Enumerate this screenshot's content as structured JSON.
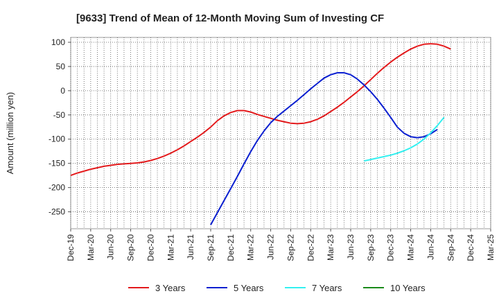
{
  "chart_data": {
    "type": "line",
    "title": "[9633]  Trend of Mean of 12-Month Moving Sum of Investing CF",
    "xlabel": "",
    "ylabel": "Amount (million yen)",
    "ylim": [
      -285,
      110
    ],
    "y_ticks": [
      100,
      50,
      0,
      -50,
      -100,
      -150,
      -200,
      -250
    ],
    "x_ticks": [
      "Dec-19",
      "Mar-20",
      "Jun-20",
      "Sep-20",
      "Dec-20",
      "Mar-21",
      "Jun-21",
      "Sep-21",
      "Dec-21",
      "Mar-22",
      "Jun-22",
      "Sep-22",
      "Dec-22",
      "Mar-23",
      "Jun-23",
      "Sep-23",
      "Dec-23",
      "Mar-24",
      "Jun-24",
      "Sep-24",
      "Dec-24",
      "Mar-25"
    ],
    "grid": true,
    "legend_position": "bottom",
    "series": [
      {
        "name": "3 Years",
        "color": "#e31a1c",
        "points": [
          [
            "Dec-19",
            -175
          ],
          [
            "Jan-20",
            -170
          ],
          [
            "Feb-20",
            -166
          ],
          [
            "Mar-20",
            -162
          ],
          [
            "Apr-20",
            -159
          ],
          [
            "May-20",
            -156
          ],
          [
            "Jun-20",
            -154
          ],
          [
            "Jul-20",
            -152
          ],
          [
            "Aug-20",
            -151
          ],
          [
            "Sep-20",
            -150
          ],
          [
            "Oct-20",
            -149
          ],
          [
            "Nov-20",
            -147
          ],
          [
            "Dec-20",
            -144
          ],
          [
            "Jan-21",
            -140
          ],
          [
            "Feb-21",
            -135
          ],
          [
            "Mar-21",
            -129
          ],
          [
            "Apr-21",
            -122
          ],
          [
            "May-21",
            -114
          ],
          [
            "Jun-21",
            -105
          ],
          [
            "Jul-21",
            -96
          ],
          [
            "Aug-21",
            -86
          ],
          [
            "Sep-21",
            -75
          ],
          [
            "Oct-21",
            -62
          ],
          [
            "Nov-21",
            -52
          ],
          [
            "Dec-21",
            -45
          ],
          [
            "Jan-22",
            -41
          ],
          [
            "Feb-22",
            -41
          ],
          [
            "Mar-22",
            -44
          ],
          [
            "Apr-22",
            -49
          ],
          [
            "May-22",
            -53
          ],
          [
            "Jun-22",
            -57
          ],
          [
            "Jul-22",
            -61
          ],
          [
            "Aug-22",
            -64
          ],
          [
            "Sep-22",
            -67
          ],
          [
            "Oct-22",
            -68
          ],
          [
            "Nov-22",
            -67
          ],
          [
            "Dec-22",
            -64
          ],
          [
            "Jan-23",
            -59
          ],
          [
            "Feb-23",
            -52
          ],
          [
            "Mar-23",
            -43
          ],
          [
            "Apr-23",
            -34
          ],
          [
            "May-23",
            -24
          ],
          [
            "Jun-23",
            -13
          ],
          [
            "Jul-23",
            -2
          ],
          [
            "Aug-23",
            10
          ],
          [
            "Sep-23",
            23
          ],
          [
            "Oct-23",
            36
          ],
          [
            "Nov-23",
            48
          ],
          [
            "Dec-23",
            59
          ],
          [
            "Jan-24",
            69
          ],
          [
            "Feb-24",
            78
          ],
          [
            "Mar-24",
            86
          ],
          [
            "Apr-24",
            92
          ],
          [
            "May-24",
            96
          ],
          [
            "Jun-24",
            97
          ],
          [
            "Jul-24",
            96
          ],
          [
            "Aug-24",
            92
          ],
          [
            "Sep-24",
            86
          ]
        ]
      },
      {
        "name": "5 Years",
        "color": "#0a1fd0",
        "points": [
          [
            "Sep-21",
            -277
          ],
          [
            "Oct-21",
            -252
          ],
          [
            "Nov-21",
            -227
          ],
          [
            "Dec-21",
            -202
          ],
          [
            "Jan-22",
            -177
          ],
          [
            "Feb-22",
            -151
          ],
          [
            "Mar-22",
            -126
          ],
          [
            "Apr-22",
            -103
          ],
          [
            "May-22",
            -83
          ],
          [
            "Jun-22",
            -66
          ],
          [
            "Jul-22",
            -53
          ],
          [
            "Aug-22",
            -42
          ],
          [
            "Sep-22",
            -31
          ],
          [
            "Oct-22",
            -20
          ],
          [
            "Nov-22",
            -8
          ],
          [
            "Dec-22",
            4
          ],
          [
            "Jan-23",
            15
          ],
          [
            "Feb-23",
            26
          ],
          [
            "Mar-23",
            33
          ],
          [
            "Apr-23",
            37
          ],
          [
            "May-23",
            37
          ],
          [
            "Jun-23",
            33
          ],
          [
            "Jul-23",
            24
          ],
          [
            "Aug-23",
            12
          ],
          [
            "Sep-23",
            -2
          ],
          [
            "Oct-23",
            -18
          ],
          [
            "Nov-23",
            -36
          ],
          [
            "Dec-23",
            -55
          ],
          [
            "Jan-24",
            -75
          ],
          [
            "Feb-24",
            -88
          ],
          [
            "Mar-24",
            -95
          ],
          [
            "Apr-24",
            -97
          ],
          [
            "May-24",
            -95
          ],
          [
            "Jun-24",
            -89
          ],
          [
            "Jul-24",
            -80
          ]
        ]
      },
      {
        "name": "7 Years",
        "color": "#33f0f0",
        "points": [
          [
            "Aug-23",
            -145
          ],
          [
            "Sep-23",
            -142
          ],
          [
            "Oct-23",
            -139
          ],
          [
            "Nov-23",
            -136
          ],
          [
            "Dec-23",
            -133
          ],
          [
            "Jan-24",
            -129
          ],
          [
            "Feb-24",
            -124
          ],
          [
            "Mar-24",
            -118
          ],
          [
            "Apr-24",
            -110
          ],
          [
            "May-24",
            -100
          ],
          [
            "Jun-24",
            -87
          ],
          [
            "Jul-24",
            -72
          ],
          [
            "Aug-24",
            -55
          ]
        ]
      },
      {
        "name": "10 Years",
        "color": "#1a8a1a",
        "points": []
      }
    ]
  }
}
